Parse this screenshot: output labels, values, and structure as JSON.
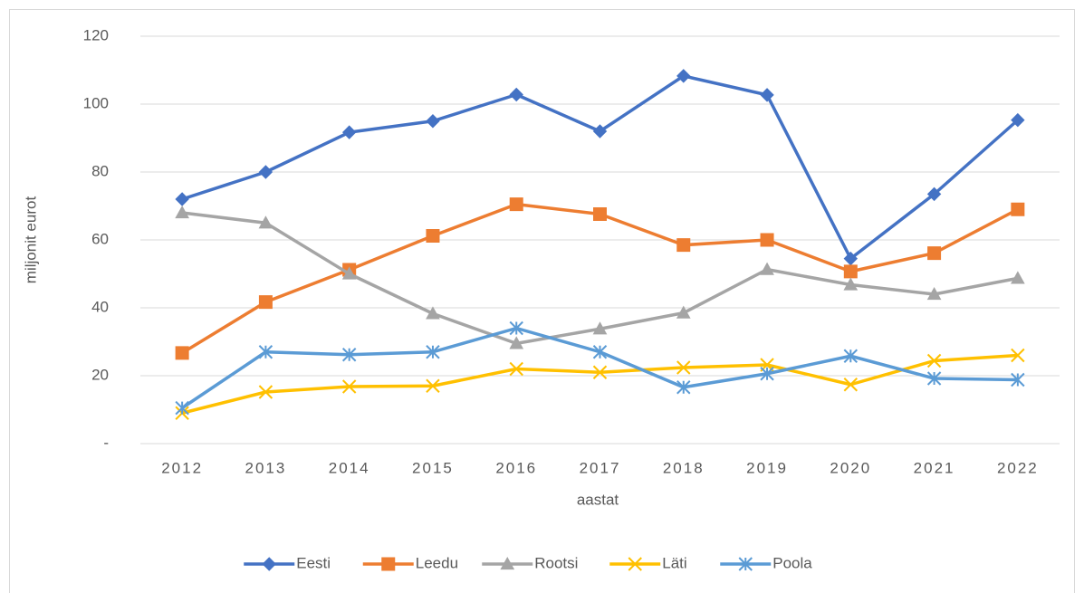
{
  "chart_data": {
    "type": "line",
    "x_label": "aastat",
    "y_label": "miljonit eurot",
    "categories": [
      "2012",
      "2013",
      "2014",
      "2015",
      "2016",
      "2017",
      "2018",
      "2019",
      "2020",
      "2021",
      "2022"
    ],
    "series": [
      {
        "name": "Eesti",
        "color": "#4472c4",
        "marker": "diamond",
        "values": [
          72,
          80,
          91.7,
          95,
          102.8,
          92,
          108.3,
          102.7,
          54.5,
          73.5,
          95.3
        ]
      },
      {
        "name": "Leedu",
        "color": "#ed7d31",
        "marker": "square",
        "values": [
          26.7,
          41.7,
          51.2,
          61.2,
          70.5,
          67.6,
          58.5,
          60,
          50.7,
          56.1,
          69
        ]
      },
      {
        "name": "Rootsi",
        "color": "#a5a5a5",
        "marker": "triangle",
        "values": [
          68,
          65,
          50,
          38.3,
          29.5,
          33.8,
          38.5,
          51.3,
          46.8,
          44,
          48.7
        ]
      },
      {
        "name": "Läti",
        "color": "#ffc000",
        "marker": "x",
        "values": [
          9,
          15.2,
          16.8,
          17,
          22,
          21,
          22.4,
          23.2,
          17.4,
          24.4,
          26
        ]
      },
      {
        "name": "Poola",
        "color": "#5b9bd5",
        "marker": "star",
        "values": [
          10.5,
          27,
          26.2,
          27,
          34,
          27,
          16.6,
          20.6,
          25.8,
          19.2,
          18.8
        ]
      }
    ],
    "ylim": [
      0,
      120
    ],
    "yticks": [
      {
        "value": 0,
        "label": "-"
      },
      20,
      40,
      60,
      80,
      100,
      120
    ],
    "grid": true,
    "legend": "bottom"
  }
}
